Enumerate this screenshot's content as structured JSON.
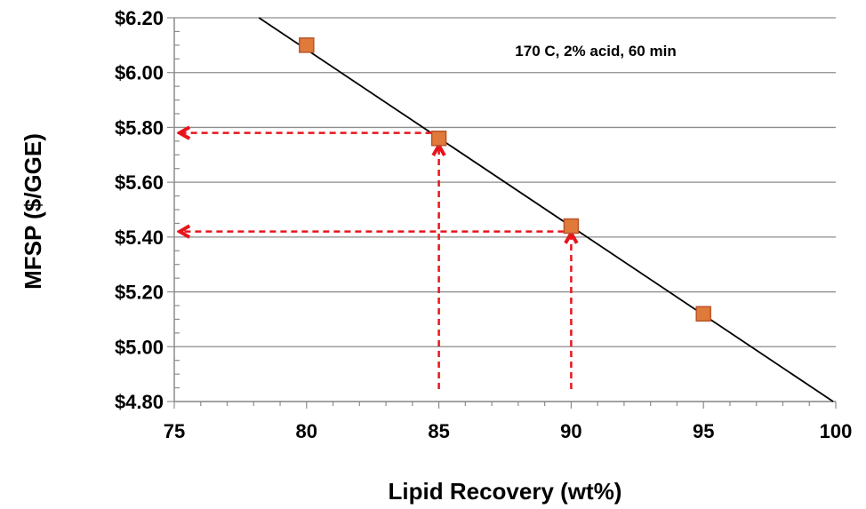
{
  "chart_data": {
    "type": "scatter",
    "title": "",
    "xlabel": "Lipid Recovery (wt%)",
    "ylabel": "MFSP ($/GGE)",
    "xlim": [
      75,
      100
    ],
    "ylim": [
      4.8,
      6.2
    ],
    "x_ticks": [
      75,
      80,
      85,
      90,
      95,
      100
    ],
    "x_tick_labels": [
      "75",
      "80",
      "85",
      "90",
      "95",
      "100"
    ],
    "y_ticks": [
      4.8,
      5.0,
      5.2,
      5.4,
      5.6,
      5.8,
      6.0,
      6.2
    ],
    "y_tick_labels": [
      "$4.80",
      "$5.00",
      "$5.20",
      "$5.40",
      "$5.60",
      "$5.80",
      "$6.00",
      "$6.20"
    ],
    "grid": "horizontal",
    "series": [
      {
        "marker": "square",
        "color": "#e07a3a",
        "x": [
          80,
          85,
          90,
          95
        ],
        "y": [
          6.1,
          5.76,
          5.44,
          5.12
        ]
      }
    ],
    "trendline": {
      "type": "linear",
      "color": "#000000",
      "points": [
        [
          78.2,
          6.2
        ],
        [
          99.9,
          4.8
        ]
      ]
    },
    "annotations": [
      {
        "text": "170 C, 2% acid, 60 min",
        "position": "top-right"
      }
    ],
    "arrows": {
      "color": "#e8141c",
      "style": "dashed",
      "vertical": [
        {
          "x": 85,
          "from_y": 4.8,
          "to_y": 5.76
        },
        {
          "x": 90,
          "from_y": 4.8,
          "to_y": 5.44
        }
      ],
      "horizontal": [
        {
          "y": 5.78,
          "from_x": 85,
          "to_x": 75
        },
        {
          "y": 5.42,
          "from_x": 90,
          "to_x": 75
        }
      ]
    }
  }
}
